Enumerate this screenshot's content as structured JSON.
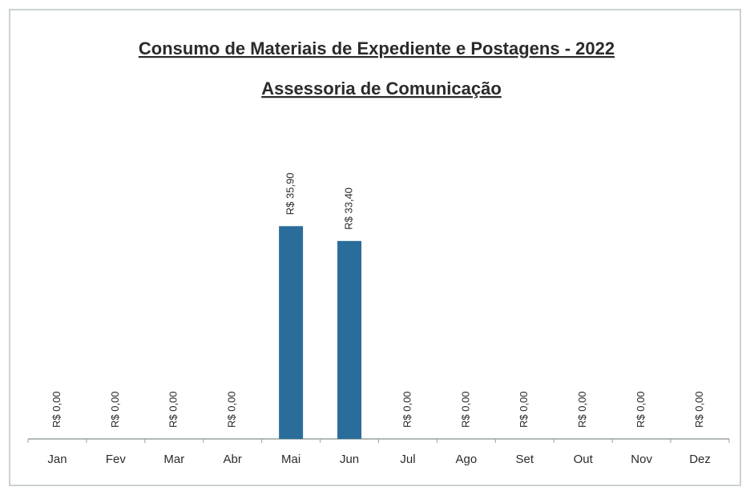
{
  "chart_data": {
    "type": "bar",
    "title": "Consumo de Materiais de Expediente e Postagens - 2022",
    "subtitle": "Assessoria de Comunicação",
    "categories": [
      "Jan",
      "Fev",
      "Mar",
      "Abr",
      "Mai",
      "Jun",
      "Jul",
      "Ago",
      "Set",
      "Out",
      "Nov",
      "Dez"
    ],
    "values": [
      0,
      0,
      0,
      0,
      35.9,
      33.4,
      0,
      0,
      0,
      0,
      0,
      0
    ],
    "value_labels": [
      "R$ 0,00",
      "R$ 0,00",
      "R$ 0,00",
      "R$ 0,00",
      "R$ 35,90",
      "R$ 33,40",
      "R$ 0,00",
      "R$ 0,00",
      "R$ 0,00",
      "R$ 0,00",
      "R$ 0,00",
      "R$ 0,00"
    ],
    "color": "#2a6d9a",
    "ylim": [
      0,
      40
    ]
  }
}
